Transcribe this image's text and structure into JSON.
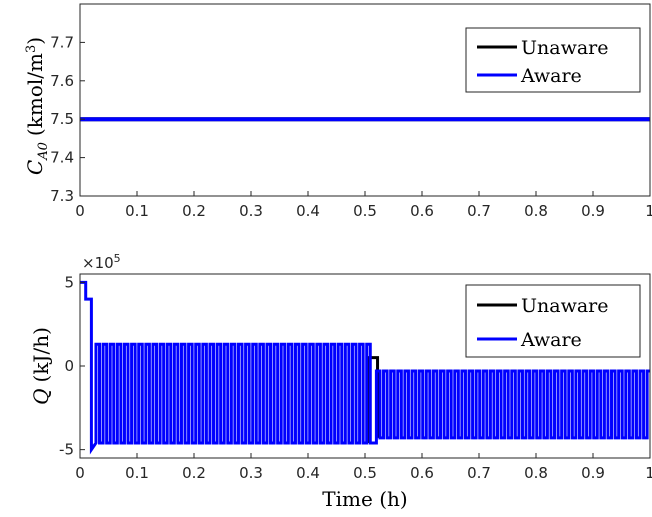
{
  "chart_data": [
    {
      "type": "line",
      "ylabel_symbol": "C",
      "ylabel_subscript": "A0",
      "ylabel_units": "(kmol/m",
      "ylabel_units_sup": "3",
      "ylabel_units_close": ")",
      "xlim": [
        0,
        1
      ],
      "ylim": [
        7.3,
        7.8
      ],
      "xticks": [
        "0",
        "0.1",
        "0.2",
        "0.3",
        "0.4",
        "0.5",
        "0.6",
        "0.7",
        "0.8",
        "0.9",
        "1"
      ],
      "yticks": [
        "7.3",
        "7.4",
        "7.5",
        "7.6",
        "7.7"
      ],
      "legend_position": "top-right",
      "series": [
        {
          "name": "Unaware",
          "color": "#000000",
          "x": [
            0,
            1
          ],
          "y": [
            7.5,
            7.5
          ]
        },
        {
          "name": "Aware",
          "color": "#0000ff",
          "x": [
            0,
            1
          ],
          "y": [
            7.5,
            7.5
          ]
        }
      ]
    },
    {
      "type": "line",
      "ylabel_symbol": "Q",
      "ylabel_units": "(kJ/h)",
      "xlabel": "Time (h)",
      "y_multiplier_base": "×10",
      "y_multiplier_exp": "5",
      "xlim": [
        0,
        1
      ],
      "ylim": [
        -5.5,
        5.5
      ],
      "xticks": [
        "0",
        "0.1",
        "0.2",
        "0.3",
        "0.4",
        "0.5",
        "0.6",
        "0.7",
        "0.8",
        "0.9",
        "1"
      ],
      "yticks": [
        "-5",
        "0",
        "5"
      ],
      "legend_position": "top-right",
      "series": [
        {
          "name": "Unaware",
          "color": "#000000",
          "description": "same as Aware until 0.51 h, then holds ~0.5 before switching"
        },
        {
          "name": "Aware",
          "color": "#0000ff"
        }
      ],
      "aware_profile": {
        "initial_steps": [
          [
            0,
            5
          ],
          [
            0.01,
            4
          ],
          [
            0.02,
            -5
          ]
        ],
        "phase1": {
          "start": 0.02,
          "end": 0.51,
          "period": 0.0125,
          "high": 1.3,
          "low": -4.6
        },
        "phase2": {
          "start": 0.52,
          "end": 1.0,
          "period": 0.0125,
          "high": -0.3,
          "low": -4.3
        }
      },
      "unaware_deviation": {
        "x_start": 0.508,
        "x_end": 0.522,
        "y": 0.5
      }
    }
  ]
}
